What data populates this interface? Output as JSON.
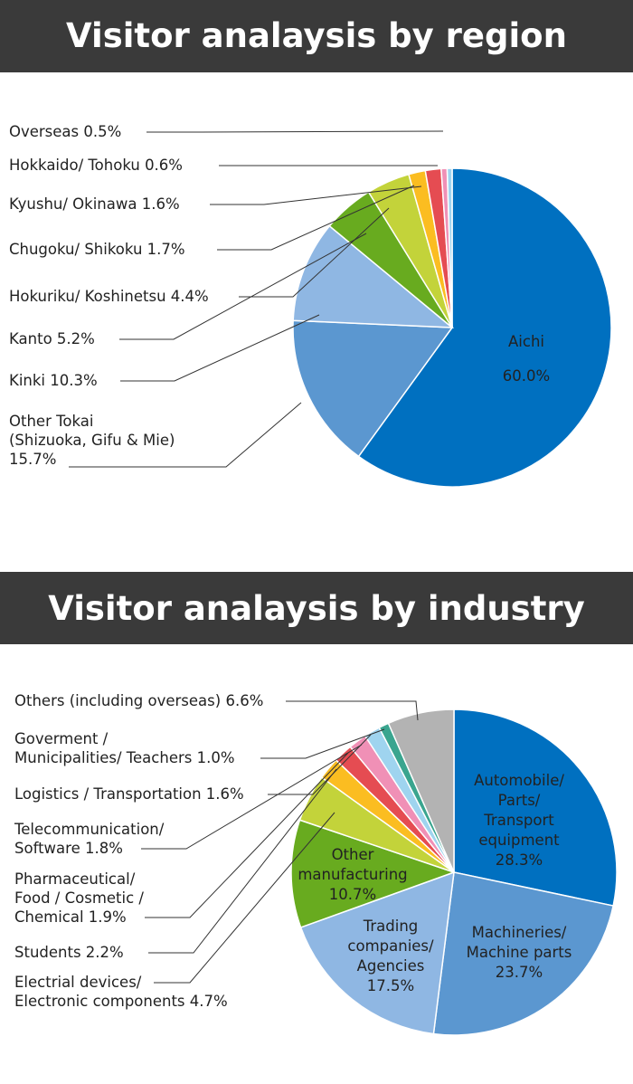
{
  "region_title": "Visitor analaysis by region",
  "industry_title": "Visitor analaysis by industry",
  "chart_data": [
    {
      "type": "pie",
      "title": "Visitor analaysis by region",
      "slices": [
        {
          "label": "Aichi",
          "value": 60.0,
          "value_label": "60.0%",
          "color": "#0070c0",
          "inside": true
        },
        {
          "label": "Other Tokai (Shizuoka, Gifu & Mie)",
          "label_lines": [
            "Other Tokai",
            "(Shizuoka, Gifu & Mie)",
            "15.7%"
          ],
          "value": 15.7,
          "value_label": "15.7%",
          "color": "#5b97d0"
        },
        {
          "label": "Kinki",
          "value": 10.3,
          "value_label": "10.3%",
          "color": "#8fb7e3"
        },
        {
          "label": "Kanto",
          "value": 5.2,
          "value_label": "5.2%",
          "color": "#68ab1f"
        },
        {
          "label": "Hokuriku/ Koshinetsu",
          "value": 4.4,
          "value_label": "4.4%",
          "color": "#c3d33a"
        },
        {
          "label": "Chugoku/ Shikoku",
          "value": 1.7,
          "value_label": "1.7%",
          "color": "#fbbd21"
        },
        {
          "label": "Kyushu/ Okinawa",
          "value": 1.6,
          "value_label": "1.6%",
          "color": "#e54c52"
        },
        {
          "label": "Hokkaido/ Tohoku",
          "value": 0.6,
          "value_label": "0.6%",
          "color": "#f090b6"
        },
        {
          "label": "Overseas",
          "value": 0.5,
          "value_label": "0.5%",
          "color": "#9fd4ef"
        }
      ]
    },
    {
      "type": "pie",
      "title": "Visitor analaysis by industry",
      "slices": [
        {
          "label": "Automobile/ Parts/ Transport equipment",
          "label_lines": [
            "Automobile/",
            "Parts/",
            "Transport",
            "equipment",
            "28.3%"
          ],
          "value": 28.3,
          "value_label": "28.3%",
          "color": "#0070c0",
          "inside": true,
          "text_color": "#ffffff"
        },
        {
          "label": "Machineries/ Machine parts",
          "label_lines": [
            "Machineries/",
            "Machine parts",
            "23.7%"
          ],
          "value": 23.7,
          "value_label": "23.7%",
          "color": "#5b97d0",
          "inside": true,
          "text_color": "#ffffff"
        },
        {
          "label": "Trading companies/ Agencies",
          "label_lines": [
            "Trading",
            "companies/",
            "Agencies",
            "17.5%"
          ],
          "value": 17.5,
          "value_label": "17.5%",
          "color": "#8fb7e3",
          "inside": true,
          "text_color": "#222222"
        },
        {
          "label": "Other manufacturing",
          "label_lines": [
            "Other",
            "manufacturing",
            "10.7%"
          ],
          "value": 10.7,
          "value_label": "10.7%",
          "color": "#68ab1f",
          "inside": true,
          "text_color": "#ffffff"
        },
        {
          "label": "Electrial devices/ Electronic components",
          "label_lines": [
            "Electrial devices/",
            "Electronic components   4.7%"
          ],
          "value": 4.7,
          "value_label": "4.7%",
          "color": "#c3d33a"
        },
        {
          "label": "Students",
          "label_lines": [
            "Students   2.2%"
          ],
          "value": 2.2,
          "value_label": "2.2%",
          "color": "#fbbd21"
        },
        {
          "label": "Pharmaceutical/ Food / Cosmetic / Chemical",
          "label_lines": [
            "Pharmaceutical/",
            "Food  / Cosmetic  /",
            "Chemical   1.9%"
          ],
          "value": 1.9,
          "value_label": "1.9%",
          "color": "#e54c52"
        },
        {
          "label": "Telecommunication/ Software",
          "label_lines": [
            "Telecommunication/",
            "Software   1.8%"
          ],
          "value": 1.8,
          "value_label": "1.8%",
          "color": "#f090b6"
        },
        {
          "label": "Logistics / Transportation",
          "label_lines": [
            "Logistics / Transportation   1.6%"
          ],
          "value": 1.6,
          "value_label": "1.6%",
          "color": "#9fd4ef"
        },
        {
          "label": "Goverment / Municipalities/ Teachers",
          "label_lines": [
            "Goverment /",
            "Municipalities/ Teachers   1.0%"
          ],
          "value": 1.0,
          "value_label": "1.0%",
          "color": "#3aa58f"
        },
        {
          "label": "Others (including overseas)",
          "label_lines": [
            "Others (including overseas)   6.6%"
          ],
          "value": 6.6,
          "value_label": "6.6%",
          "color": "#b3b3b3"
        }
      ]
    }
  ]
}
